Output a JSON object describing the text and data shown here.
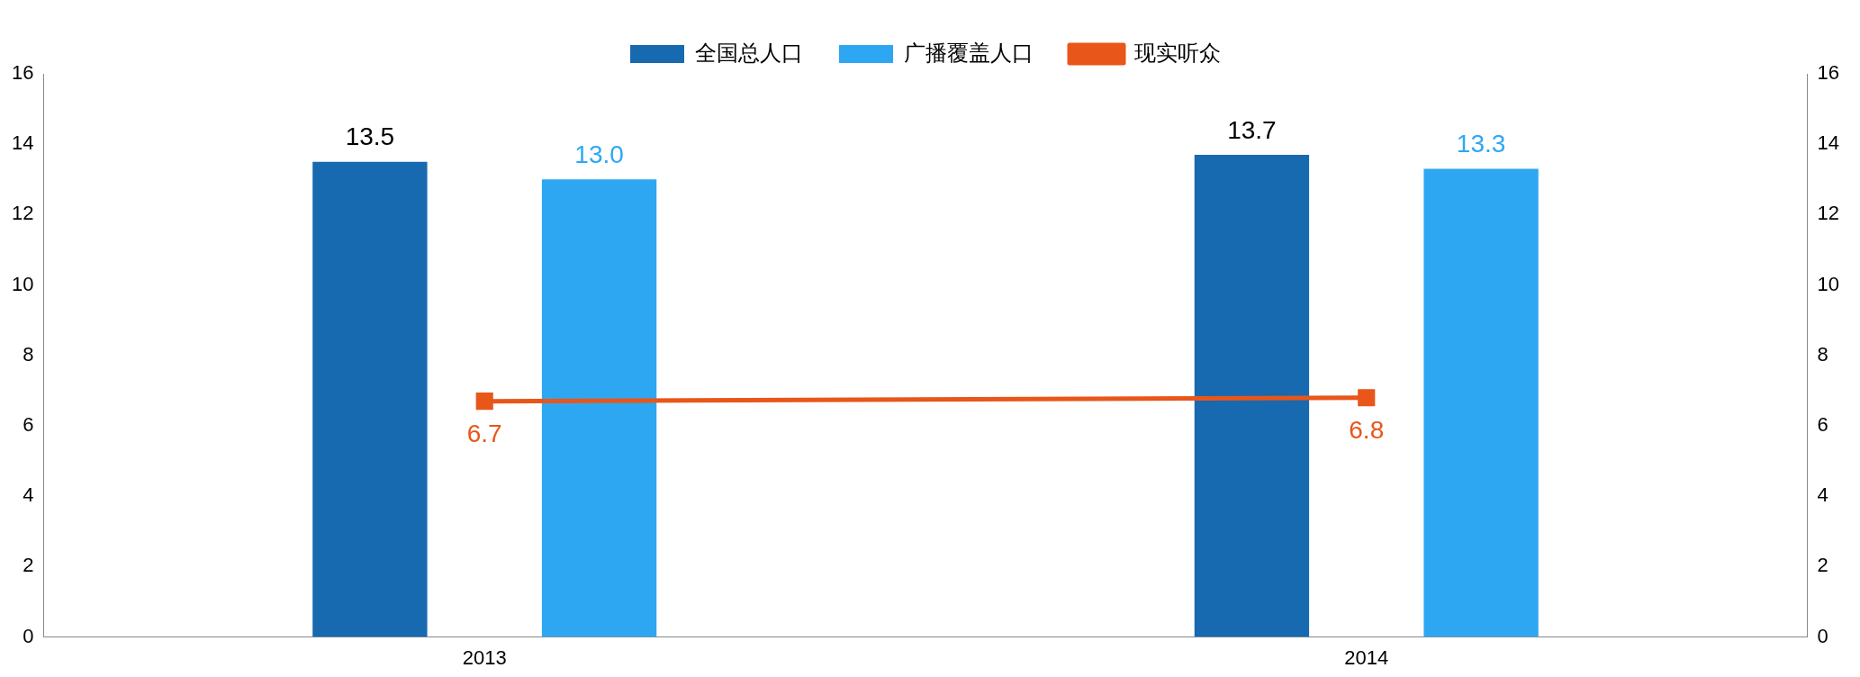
{
  "chart_data": {
    "type": "bar",
    "categories": [
      "2013",
      "2014"
    ],
    "series": [
      {
        "name": "全国总人口",
        "color": "#1769b0",
        "values": [
          13.5,
          13.7
        ],
        "value_labels": [
          "13.5",
          "13.7"
        ]
      },
      {
        "name": "广播覆盖人口",
        "color": "#2ea7f3",
        "values": [
          13.0,
          13.3
        ],
        "value_labels": [
          "13.0",
          "13.3"
        ]
      },
      {
        "name": "现实听众",
        "type": "line",
        "color": "#e8561a",
        "values": [
          6.7,
          6.8
        ],
        "value_labels": [
          "6.7",
          "6.8"
        ]
      }
    ],
    "ylim": [
      0,
      16
    ],
    "yticks": [
      0,
      2,
      4,
      6,
      8,
      10,
      12,
      14,
      16
    ],
    "y2lim": [
      0,
      16
    ],
    "y2ticks": [
      0,
      2,
      4,
      6,
      8,
      10,
      12,
      14,
      16
    ],
    "legend": "top",
    "grid": false,
    "marker": "square",
    "line_style": "solid"
  }
}
